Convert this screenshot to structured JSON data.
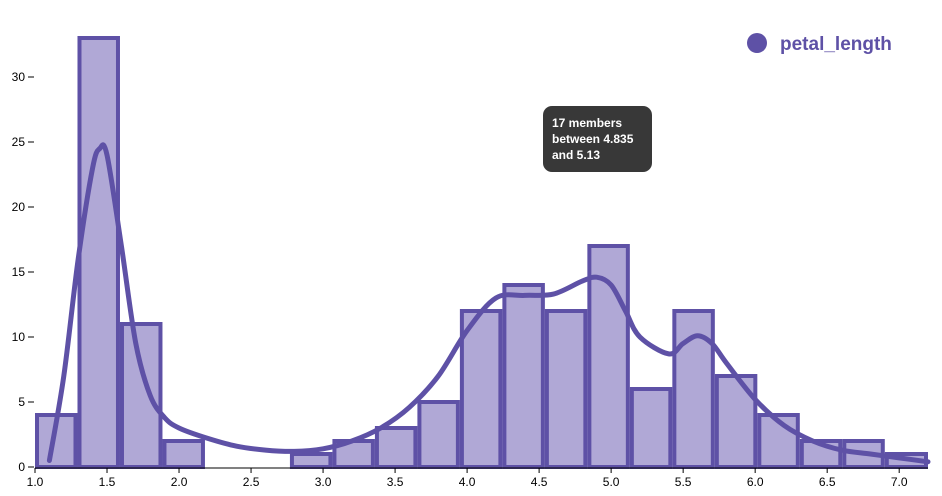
{
  "chart_data": {
    "type": "bar",
    "subtype": "histogram-with-density",
    "series_name": "petal_length",
    "bins": [
      {
        "x0": 1.0,
        "x1": 1.295,
        "count": 4
      },
      {
        "x0": 1.295,
        "x1": 1.59,
        "count": 33
      },
      {
        "x0": 1.59,
        "x1": 1.885,
        "count": 11
      },
      {
        "x0": 1.885,
        "x1": 2.18,
        "count": 2
      },
      {
        "x0": 2.18,
        "x1": 2.475,
        "count": 0
      },
      {
        "x0": 2.475,
        "x1": 2.77,
        "count": 0
      },
      {
        "x0": 2.77,
        "x1": 3.065,
        "count": 1
      },
      {
        "x0": 3.065,
        "x1": 3.36,
        "count": 2
      },
      {
        "x0": 3.36,
        "x1": 3.655,
        "count": 3
      },
      {
        "x0": 3.655,
        "x1": 3.95,
        "count": 5
      },
      {
        "x0": 3.95,
        "x1": 4.245,
        "count": 12
      },
      {
        "x0": 4.245,
        "x1": 4.54,
        "count": 14
      },
      {
        "x0": 4.54,
        "x1": 4.835,
        "count": 12
      },
      {
        "x0": 4.835,
        "x1": 5.13,
        "count": 17
      },
      {
        "x0": 5.13,
        "x1": 5.425,
        "count": 6
      },
      {
        "x0": 5.425,
        "x1": 5.72,
        "count": 12
      },
      {
        "x0": 5.72,
        "x1": 6.015,
        "count": 7
      },
      {
        "x0": 6.015,
        "x1": 6.31,
        "count": 4
      },
      {
        "x0": 6.31,
        "x1": 6.605,
        "count": 2
      },
      {
        "x0": 6.605,
        "x1": 6.9,
        "count": 2
      },
      {
        "x0": 6.9,
        "x1": 7.2,
        "count": 1
      }
    ],
    "density_curve": {
      "x": [
        1.1,
        1.2,
        1.3,
        1.4,
        1.45,
        1.5,
        1.6,
        1.7,
        1.8,
        1.9,
        2.0,
        2.2,
        2.4,
        2.6,
        2.8,
        3.0,
        3.2,
        3.4,
        3.6,
        3.8,
        4.0,
        4.2,
        4.4,
        4.6,
        4.8,
        4.9,
        5.0,
        5.1,
        5.2,
        5.4,
        5.5,
        5.6,
        5.7,
        5.8,
        6.0,
        6.2,
        6.4,
        6.6,
        6.8,
        7.0,
        7.2
      ],
      "y": [
        0.5,
        7,
        16,
        23,
        24.5,
        24,
        17,
        9.5,
        5.5,
        3.8,
        3.0,
        2.2,
        1.6,
        1.3,
        1.2,
        1.4,
        2.0,
        3.0,
        4.6,
        7.0,
        10.5,
        13.0,
        13.2,
        13.3,
        14.3,
        14.6,
        14.0,
        12.0,
        10.0,
        8.7,
        9.5,
        10.1,
        9.5,
        8.0,
        5.2,
        3.2,
        2.0,
        1.3,
        1.0,
        0.7,
        0.4
      ]
    },
    "xlim": [
      1.0,
      7.2
    ],
    "ylim": [
      0,
      33
    ],
    "x_ticks": [
      "1.0",
      "1.5",
      "2.0",
      "2.5",
      "3.0",
      "3.5",
      "4.0",
      "4.5",
      "5.0",
      "5.5",
      "6.0",
      "6.5",
      "7.0"
    ],
    "y_ticks": [
      "0",
      "5",
      "10",
      "15",
      "20",
      "25",
      "30"
    ],
    "legend": {
      "label": "petal_length",
      "position": "top-right"
    },
    "tooltip": {
      "lines": [
        "17 members",
        "between 4.835",
        "and 5.13"
      ],
      "bin_index": 13
    },
    "grid": false,
    "title": "",
    "xlabel": "",
    "ylabel": "",
    "colors": {
      "fill": "#b0a8d6",
      "stroke": "#5e51a6",
      "tooltip_bg": "#383838",
      "tooltip_text": "#ffffff"
    }
  }
}
